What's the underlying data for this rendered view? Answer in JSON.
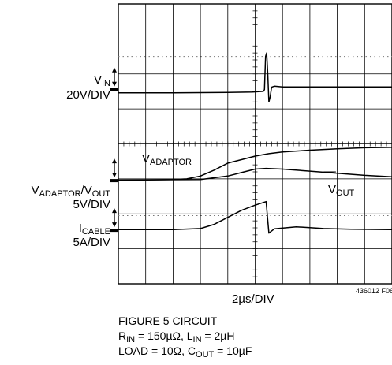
{
  "chart_data": {
    "type": "line",
    "xlabel": "2µs/DIV",
    "figure_id": "436012 F06",
    "grid": true,
    "divisions": {
      "x": 10,
      "y": 8
    },
    "x_unit": "µs",
    "x_per_div": 2,
    "x_range_div": [
      0,
      10
    ],
    "channels": [
      {
        "name_main": "V",
        "name_sub": "IN",
        "scale": "20V/DIV",
        "ground_div": 5.55,
        "points": [
          [
            0,
            5.46
          ],
          [
            2.0,
            5.46
          ],
          [
            4.0,
            5.47
          ],
          [
            4.9,
            5.48
          ],
          [
            5.3,
            5.5
          ],
          [
            5.34,
            5.55
          ],
          [
            5.38,
            6.5
          ],
          [
            5.42,
            6.6
          ],
          [
            5.46,
            6.0
          ],
          [
            5.5,
            5.2
          ],
          [
            5.55,
            5.35
          ],
          [
            5.6,
            5.62
          ],
          [
            5.7,
            5.65
          ],
          [
            6.0,
            5.63
          ],
          [
            7.0,
            5.63
          ],
          [
            8.5,
            5.63
          ],
          [
            10,
            5.63
          ]
        ]
      },
      {
        "name_main": "V",
        "name_sub": "ADAPTOR",
        "label_sub": "ADAPTOR",
        "scale": "5V/DIV",
        "ground_div": 2.95,
        "points": [
          [
            0,
            2.97
          ],
          [
            1.0,
            2.97
          ],
          [
            2.0,
            2.98
          ],
          [
            2.5,
            3.0
          ],
          [
            3.0,
            3.08
          ],
          [
            3.5,
            3.25
          ],
          [
            4.0,
            3.45
          ],
          [
            4.5,
            3.55
          ],
          [
            5.0,
            3.65
          ],
          [
            5.5,
            3.72
          ],
          [
            6.0,
            3.77
          ],
          [
            7.0,
            3.82
          ],
          [
            8.0,
            3.86
          ],
          [
            9.0,
            3.89
          ],
          [
            10,
            3.9
          ]
        ]
      },
      {
        "name_main": "V",
        "name_sub": "OUT",
        "label_sub": "OUT",
        "scale": "5V/DIV",
        "ground_div": 2.95,
        "points": [
          [
            0,
            2.97
          ],
          [
            3.0,
            2.98
          ],
          [
            4.0,
            3.08
          ],
          [
            4.5,
            3.18
          ],
          [
            5.0,
            3.28
          ],
          [
            5.4,
            3.3
          ],
          [
            6.0,
            3.28
          ],
          [
            7.0,
            3.22
          ],
          [
            8.0,
            3.16
          ],
          [
            9.0,
            3.1
          ],
          [
            10,
            3.06
          ]
        ]
      },
      {
        "name_main": "I",
        "name_sub": "CABLE",
        "scale": "5A/DIV",
        "ground_div": 1.53,
        "points": [
          [
            0,
            1.55
          ],
          [
            2.0,
            1.55
          ],
          [
            3.0,
            1.58
          ],
          [
            3.5,
            1.7
          ],
          [
            4.0,
            1.9
          ],
          [
            4.5,
            2.1
          ],
          [
            5.0,
            2.25
          ],
          [
            5.4,
            2.35
          ],
          [
            5.5,
            1.45
          ],
          [
            5.7,
            1.57
          ],
          [
            6.5,
            1.63
          ],
          [
            7.5,
            1.58
          ],
          [
            8.5,
            1.56
          ],
          [
            10,
            1.55
          ]
        ]
      }
    ]
  },
  "labels": {
    "vin_main": "V",
    "vin_sub": "IN",
    "vin_scale": "20V/DIV",
    "va_main1": "V",
    "va_sub1": "ADAPTOR",
    "va_sep": "/",
    "va_main2": "V",
    "va_sub2": "OUT",
    "va_scale": "5V/DIV",
    "ic_main": "I",
    "ic_sub": "CABLE",
    "ic_scale": "5A/DIV",
    "tr_adaptor_main": "V",
    "tr_adaptor_sub": "ADAPTOR",
    "tr_out_main": "V",
    "tr_out_sub": "OUT"
  },
  "caption": {
    "line1": "FIGURE 5 CIRCUIT",
    "rin_main": "R",
    "rin_sub": "IN",
    "rin_val": " = 150µΩ, ",
    "lin_main": "L",
    "lin_sub": "IN",
    "lin_val": " = 2µH",
    "load": "LOAD = 10Ω, ",
    "cout_main": "C",
    "cout_sub": "OUT",
    "cout_val": " = 10µF"
  }
}
